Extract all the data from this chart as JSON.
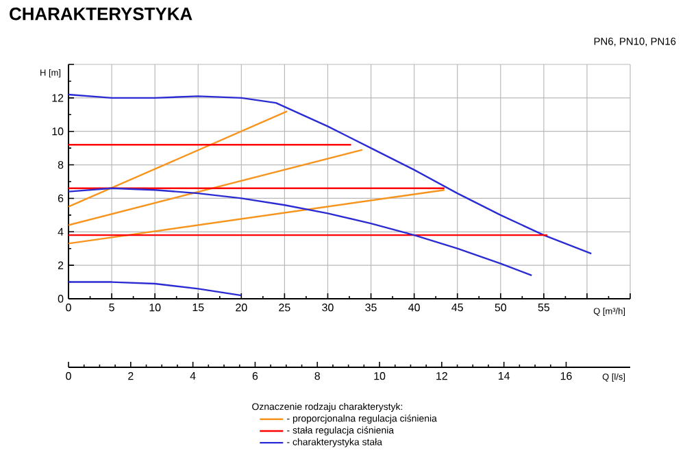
{
  "chart_data": {
    "type": "line",
    "title": "CHARAKTERYSTYKA",
    "subtitle": "PN6, PN10, PN16",
    "xlabel": "Q [m³/h]",
    "ylabel": "H [m]",
    "x2label": "Q [l/s]",
    "legend_title": "Oznaczenie rodzaju charakterystyk:",
    "xlim": [
      0,
      65
    ],
    "xticks": [
      0,
      5,
      10,
      15,
      20,
      25,
      30,
      35,
      40,
      45,
      50,
      55,
      {
        "value": 60,
        "label": null
      },
      {
        "value": 65,
        "label": null
      }
    ],
    "ylim": [
      0,
      14
    ],
    "yticks": [
      0,
      2,
      4,
      6,
      8,
      10,
      12,
      {
        "value": 14,
        "label": null
      }
    ],
    "x2lim": [
      0,
      18.06
    ],
    "x2ticks": [
      0,
      2,
      4,
      6,
      8,
      10,
      12,
      14,
      16
    ],
    "grid": true,
    "legend": "bottom",
    "series": [
      {
        "name": "- proporcjonalna regulacja ciśnienia",
        "color": "#f7941d",
        "x": [
          0,
          25.3
        ],
        "values": [
          5.5,
          11.2
        ]
      },
      {
        "name": "- stała regulacja ciśnienia",
        "color": "#ff0000",
        "x": [
          0,
          32.7
        ],
        "values": [
          9.2,
          9.2
        ]
      },
      {
        "name": "- charakterystyka stała",
        "color": "#2b2bd4",
        "x": [
          0,
          5,
          10,
          15,
          20,
          24,
          30,
          35,
          40,
          45,
          50,
          55,
          60.5
        ],
        "values": [
          12.2,
          12.0,
          12.0,
          12.1,
          12.0,
          11.7,
          10.3,
          9.0,
          7.7,
          6.3,
          5.0,
          3.8,
          2.7
        ]
      },
      {
        "color": "#f7941d",
        "x": [
          0,
          34
        ],
        "values": [
          4.4,
          8.9
        ]
      },
      {
        "color": "#f7941d",
        "x": [
          0,
          43.5
        ],
        "values": [
          3.3,
          6.5
        ]
      },
      {
        "color": "#ff0000",
        "x": [
          0,
          43.5
        ],
        "values": [
          6.6,
          6.6
        ]
      },
      {
        "color": "#ff0000",
        "x": [
          0,
          55.4
        ],
        "values": [
          3.8,
          3.8
        ]
      },
      {
        "color": "#2b2bd4",
        "x": [
          0,
          5,
          10,
          15,
          20,
          25,
          30,
          35,
          40,
          45,
          50,
          53.6
        ],
        "values": [
          6.4,
          6.6,
          6.5,
          6.3,
          6.0,
          5.6,
          5.1,
          4.5,
          3.8,
          3.0,
          2.1,
          1.4
        ]
      },
      {
        "color": "#2b2bd4",
        "x": [
          0,
          5,
          10,
          15,
          20
        ],
        "values": [
          1.0,
          1.0,
          0.9,
          0.6,
          0.2
        ]
      }
    ]
  }
}
